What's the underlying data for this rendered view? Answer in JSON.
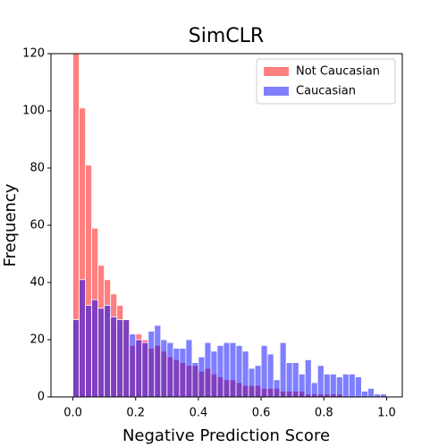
{
  "chart_data": {
    "type": "histogram",
    "title": "SimCLR",
    "xlabel": "Negative Prediction Score",
    "ylabel": "Frequency",
    "bins": [
      0,
      0.02,
      0.04,
      0.06,
      0.08,
      0.1,
      0.12,
      0.14,
      0.16,
      0.18,
      0.2,
      0.22,
      0.24,
      0.26,
      0.28,
      0.3,
      0.32,
      0.34,
      0.36,
      0.38,
      0.4,
      0.42,
      0.44,
      0.46,
      0.48,
      0.5,
      0.52,
      0.54,
      0.56,
      0.58,
      0.6,
      0.62,
      0.64,
      0.66,
      0.68,
      0.7,
      0.72,
      0.74,
      0.76,
      0.78,
      0.8,
      0.82,
      0.84,
      0.86,
      0.88,
      0.9,
      0.92,
      0.94,
      0.96,
      0.98,
      1.0
    ],
    "series": [
      {
        "name": "Not Caucasian",
        "color": "rgba(255,0,0,0.5)",
        "values": [
          122,
          101,
          81,
          59,
          46,
          41,
          36,
          32,
          27,
          18,
          22,
          20,
          17,
          18,
          16,
          14,
          13,
          12,
          11,
          11,
          9,
          10,
          8,
          7,
          6,
          6,
          5,
          4,
          4,
          4,
          3,
          3,
          3,
          2,
          2,
          2,
          2,
          1,
          1,
          1,
          1,
          1,
          1,
          0,
          0,
          0,
          0,
          0,
          0,
          0
        ]
      },
      {
        "name": "Caucasian",
        "color": "rgba(0,0,255,0.5)",
        "values": [
          27,
          41,
          32,
          34,
          31,
          32,
          28,
          27,
          27,
          22,
          20,
          19,
          23,
          25,
          20,
          19,
          17,
          17,
          20,
          12,
          14,
          19,
          16,
          18,
          19,
          19,
          18,
          16,
          10,
          11,
          18,
          15,
          6,
          19,
          12,
          12,
          8,
          13,
          5,
          11,
          8,
          8,
          7,
          8,
          8,
          7,
          2,
          3,
          1,
          1
        ]
      }
    ],
    "xlim": [
      -0.07,
      1.05
    ],
    "ylim": [
      0,
      120
    ],
    "xticks": [
      {
        "value": 0,
        "label": "0.0"
      },
      0.2,
      0.4,
      0.6,
      0.8,
      {
        "value": 1,
        "label": "1.0"
      }
    ],
    "yticks": [
      0,
      20,
      40,
      60,
      80,
      100,
      120
    ],
    "legend": "upper right"
  }
}
